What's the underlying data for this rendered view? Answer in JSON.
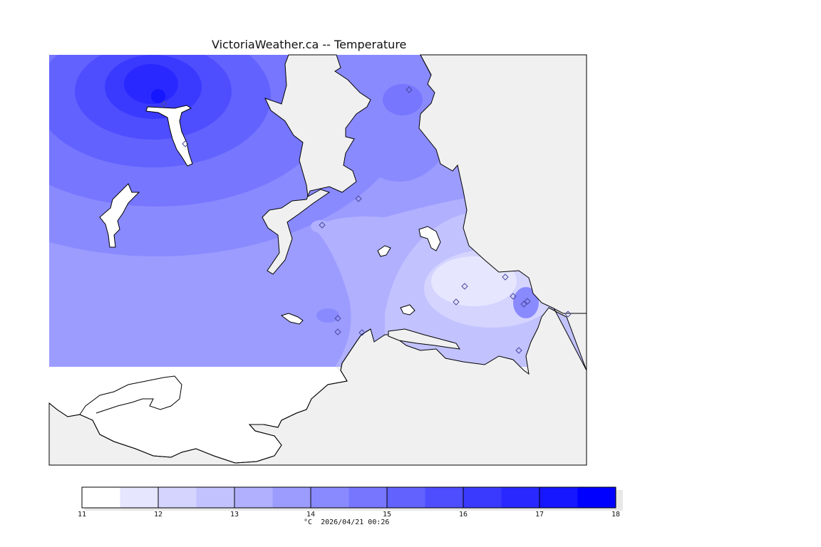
{
  "title": "VictoriaWeather.ca -- Temperature",
  "colors": {
    "page_background": "#ffffff",
    "map_background": "#f0f0f0",
    "coastline": "#000000",
    "station_marker": "#4a4aa0"
  },
  "legend": {
    "caption": "°C  2026/04/21 00:26",
    "min": 11,
    "max": 18,
    "tick_labels": [
      "11",
      "12",
      "13",
      "14",
      "15",
      "16",
      "17",
      "18"
    ],
    "color_steps": [
      {
        "from": 11.0,
        "to": 11.5,
        "color": "#ffffff"
      },
      {
        "from": 11.5,
        "to": 12.0,
        "color": "#e6e6ff"
      },
      {
        "from": 12.0,
        "to": 12.5,
        "color": "#d4d4ff"
      },
      {
        "from": 12.5,
        "to": 13.0,
        "color": "#c2c2ff"
      },
      {
        "from": 13.0,
        "to": 13.5,
        "color": "#b0b0ff"
      },
      {
        "from": 13.5,
        "to": 14.0,
        "color": "#9c9cff"
      },
      {
        "from": 14.0,
        "to": 14.5,
        "color": "#8a8aff"
      },
      {
        "from": 14.5,
        "to": 15.0,
        "color": "#7676ff"
      },
      {
        "from": 15.0,
        "to": 15.5,
        "color": "#6262ff"
      },
      {
        "from": 15.5,
        "to": 16.0,
        "color": "#4e4eff"
      },
      {
        "from": 16.0,
        "to": 16.5,
        "color": "#3a3aff"
      },
      {
        "from": 16.5,
        "to": 17.0,
        "color": "#2828ff"
      },
      {
        "from": 17.0,
        "to": 17.5,
        "color": "#1616ff"
      },
      {
        "from": 17.5,
        "to": 18.0,
        "color": "#0000ff"
      }
    ]
  }
}
